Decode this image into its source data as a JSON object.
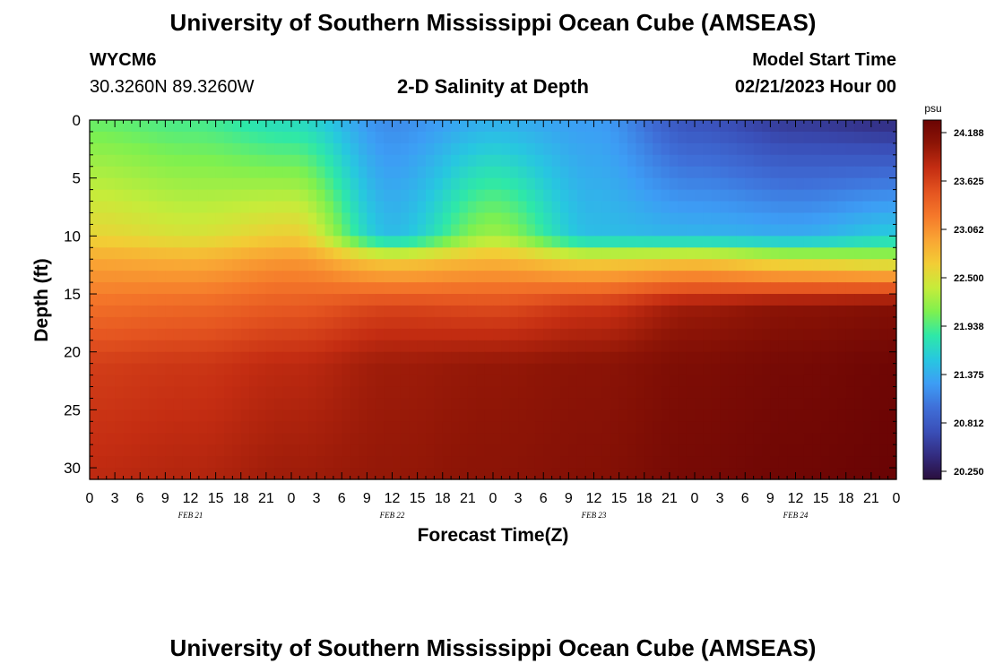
{
  "header": {
    "title": "University of Southern Mississippi Ocean Cube (AMSEAS)",
    "station_id": "WYCM6",
    "coordinates": "30.3260N  89.3260W",
    "subtitle": "2-D Salinity at Depth",
    "model_start_label": "Model Start Time",
    "model_start_value": "02/21/2023 Hour 00"
  },
  "footer": {
    "title": "University of Southern Mississippi Ocean Cube (AMSEAS)"
  },
  "chart_data": {
    "type": "heatmap",
    "title": "2-D Salinity at Depth",
    "xlabel": "Forecast Time(Z)",
    "ylabel": "Depth (ft)",
    "x_tick_labels": [
      "0",
      "3",
      "6",
      "9",
      "12",
      "15",
      "18",
      "21",
      "0",
      "3",
      "6",
      "9",
      "12",
      "15",
      "18",
      "21",
      "0",
      "3",
      "6",
      "9",
      "12",
      "15",
      "18",
      "21",
      "0",
      "3",
      "6",
      "9",
      "12",
      "15",
      "18",
      "21",
      "0"
    ],
    "x_day_labels": [
      "FEB 21",
      "FEB 22",
      "FEB 23",
      "FEB 24"
    ],
    "xlim_hours": [
      0,
      96
    ],
    "ylim": [
      0,
      31
    ],
    "y_ticks": [
      0,
      5,
      10,
      15,
      20,
      25,
      30
    ],
    "colorbar": {
      "unit": "psu",
      "range": [
        20.25,
        24.188
      ],
      "tick_labels": [
        "24.188",
        "23.625",
        "23.062",
        "22.500",
        "21.938",
        "21.375",
        "20.812",
        "20.250"
      ],
      "colors": [
        "#2a0e3d",
        "#332c80",
        "#3a4fb8",
        "#3f6fd8",
        "#3d9df5",
        "#27c7e0",
        "#2ee8a8",
        "#7ef04f",
        "#c6ec3a",
        "#f2cd35",
        "#f9a534",
        "#f5782a",
        "#e45420",
        "#c42d12",
        "#8e1506",
        "#6a0404"
      ]
    },
    "series_description": "salinity (psu) vs forecast hour and depth",
    "hours": [
      0,
      12,
      24,
      36,
      48,
      60,
      72,
      84,
      96
    ],
    "depth_profile_control_points": [
      {
        "hour": 0,
        "depth": [
          0,
          10,
          12,
          16,
          21,
          31
        ],
        "salinity": [
          22.0,
          22.55,
          22.85,
          23.2,
          23.55,
          23.7
        ]
      },
      {
        "hour": 12,
        "depth": [
          0,
          10,
          12,
          16,
          21,
          31
        ],
        "salinity": [
          21.9,
          22.45,
          22.8,
          23.25,
          23.6,
          23.75
        ]
      },
      {
        "hour": 24,
        "depth": [
          0,
          10,
          12,
          16,
          21,
          31
        ],
        "salinity": [
          21.7,
          22.6,
          22.95,
          23.35,
          23.7,
          23.85
        ]
      },
      {
        "hour": 36,
        "depth": [
          0,
          10,
          12,
          16,
          21,
          31
        ],
        "salinity": [
          21.2,
          21.5,
          22.6,
          23.5,
          23.85,
          23.9
        ]
      },
      {
        "hour": 48,
        "depth": [
          0,
          10,
          12,
          16,
          21,
          31
        ],
        "salinity": [
          21.4,
          22.2,
          22.75,
          23.45,
          23.9,
          23.95
        ]
      },
      {
        "hour": 60,
        "depth": [
          0,
          10,
          12,
          16,
          21,
          31
        ],
        "salinity": [
          21.3,
          21.5,
          22.55,
          23.6,
          23.95,
          24.0
        ]
      },
      {
        "hour": 72,
        "depth": [
          0,
          10,
          12,
          16,
          21,
          31
        ],
        "salinity": [
          20.8,
          21.45,
          22.6,
          23.85,
          24.05,
          24.1
        ]
      },
      {
        "hour": 84,
        "depth": [
          0,
          10,
          12,
          16,
          21,
          31
        ],
        "salinity": [
          20.6,
          21.4,
          22.4,
          23.95,
          24.1,
          24.15
        ]
      },
      {
        "hour": 96,
        "depth": [
          0,
          10,
          12,
          16,
          21,
          31
        ],
        "salinity": [
          20.5,
          21.6,
          22.3,
          24.0,
          24.15,
          24.19
        ]
      }
    ]
  }
}
